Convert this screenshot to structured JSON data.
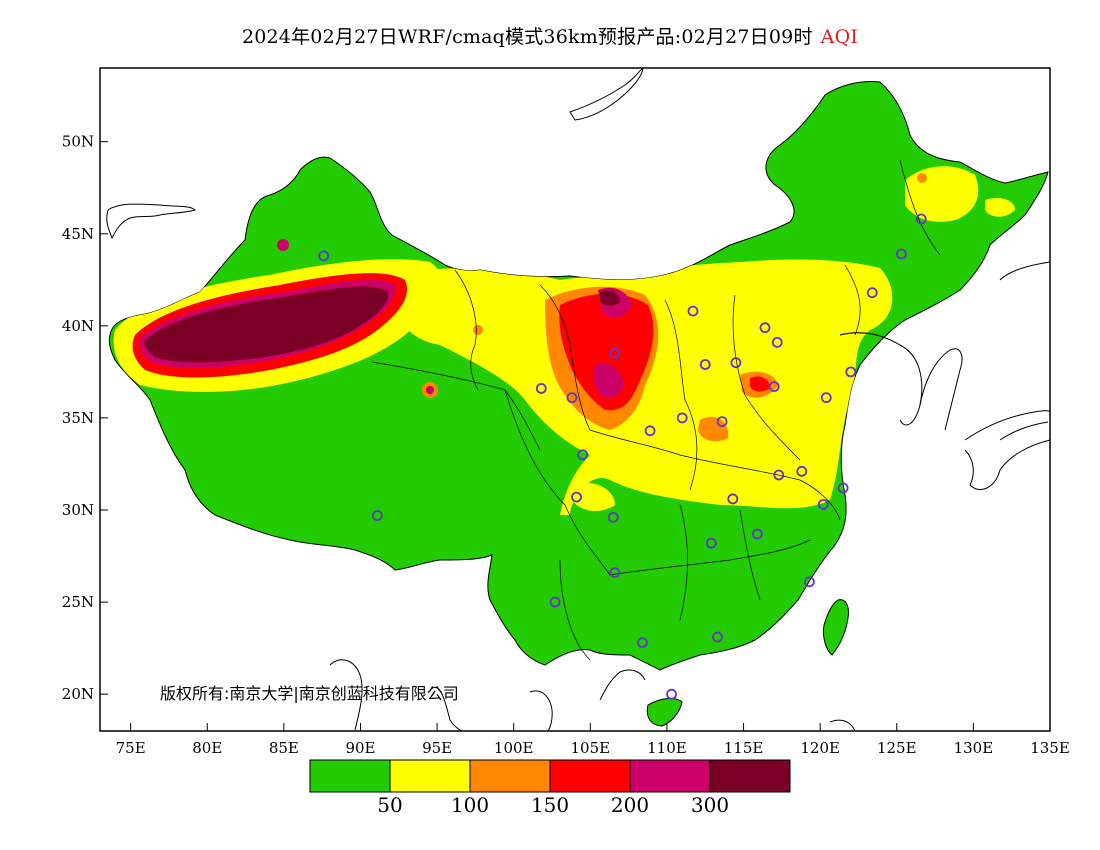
{
  "title": {
    "text": "2024年02月27日WRF/cmaq模式36km预报产品:02月27日09时",
    "product": "AQI"
  },
  "copyright": "版权所有:南京大学|南京创蓝科技有限公司",
  "axes": {
    "lat_labels": [
      "50N",
      "45N",
      "40N",
      "35N",
      "30N",
      "25N",
      "20N"
    ],
    "lon_labels": [
      "75E",
      "80E",
      "85E",
      "90E",
      "95E",
      "100E",
      "105E",
      "110E",
      "115E",
      "120E",
      "125E",
      "130E",
      "135E"
    ],
    "lon_range": [
      73,
      135
    ],
    "lat_range": [
      18,
      54
    ]
  },
  "legend": {
    "colors": [
      "#22cc00",
      "#ffff00",
      "#ff8800",
      "#ff0000",
      "#cc0066",
      "#7a0026"
    ],
    "thresholds": [
      "50",
      "100",
      "150",
      "200",
      "300"
    ]
  },
  "colors": {
    "land_good": "#22cc00",
    "moderate": "#ffff00",
    "usg": "#ff8800",
    "unhealthy": "#ff0000",
    "very_unhealthy": "#cc0066",
    "hazardous": "#7a0026",
    "city_marker": "#6633cc"
  },
  "map_marks": {
    "city_markers": "purple circles on major cities",
    "pollution_hotspots": "Taklimakan basin hazardous; North China Plain moderate to unhealthy"
  }
}
